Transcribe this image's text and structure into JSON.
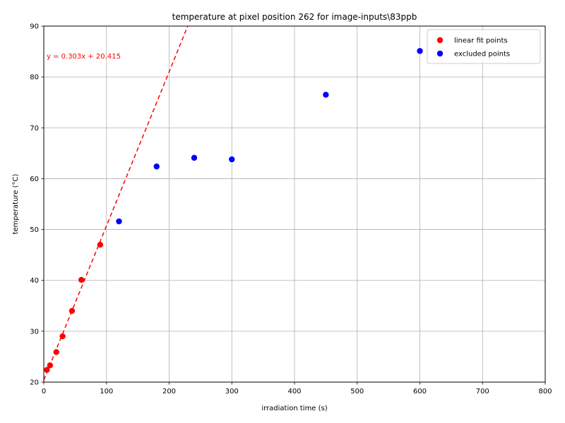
{
  "chart_data": {
    "type": "scatter",
    "title": "temperature at pixel position 262 for image-inputs\\83ppb",
    "xlabel": "irradiation time (s)",
    "ylabel": "temperature (°C)",
    "xlim": [
      0,
      800
    ],
    "ylim": [
      20,
      90
    ],
    "xticks": [
      0,
      100,
      200,
      300,
      400,
      500,
      600,
      700,
      800
    ],
    "yticks": [
      20,
      30,
      40,
      50,
      60,
      70,
      80,
      90
    ],
    "grid": true,
    "legend_position": "top-right",
    "series": [
      {
        "name": "linear fit points",
        "color": "#ff0000",
        "points": [
          [
            5,
            22.4
          ],
          [
            10,
            23.3
          ],
          [
            20,
            25.9
          ],
          [
            30,
            29.0
          ],
          [
            45,
            34.0
          ],
          [
            60,
            40.1
          ],
          [
            90,
            47.0
          ]
        ]
      },
      {
        "name": "excluded points",
        "color": "#0000ff",
        "points": [
          [
            120,
            51.6
          ],
          [
            180,
            62.4
          ],
          [
            240,
            64.1
          ],
          [
            300,
            63.8
          ],
          [
            450,
            76.5
          ],
          [
            600,
            85.1
          ]
        ]
      }
    ],
    "fit_line": {
      "slope": 0.303,
      "intercept": 20.415,
      "color": "#ff0000",
      "style": "dashed",
      "label": "y = 0.303x + 20.415"
    }
  }
}
